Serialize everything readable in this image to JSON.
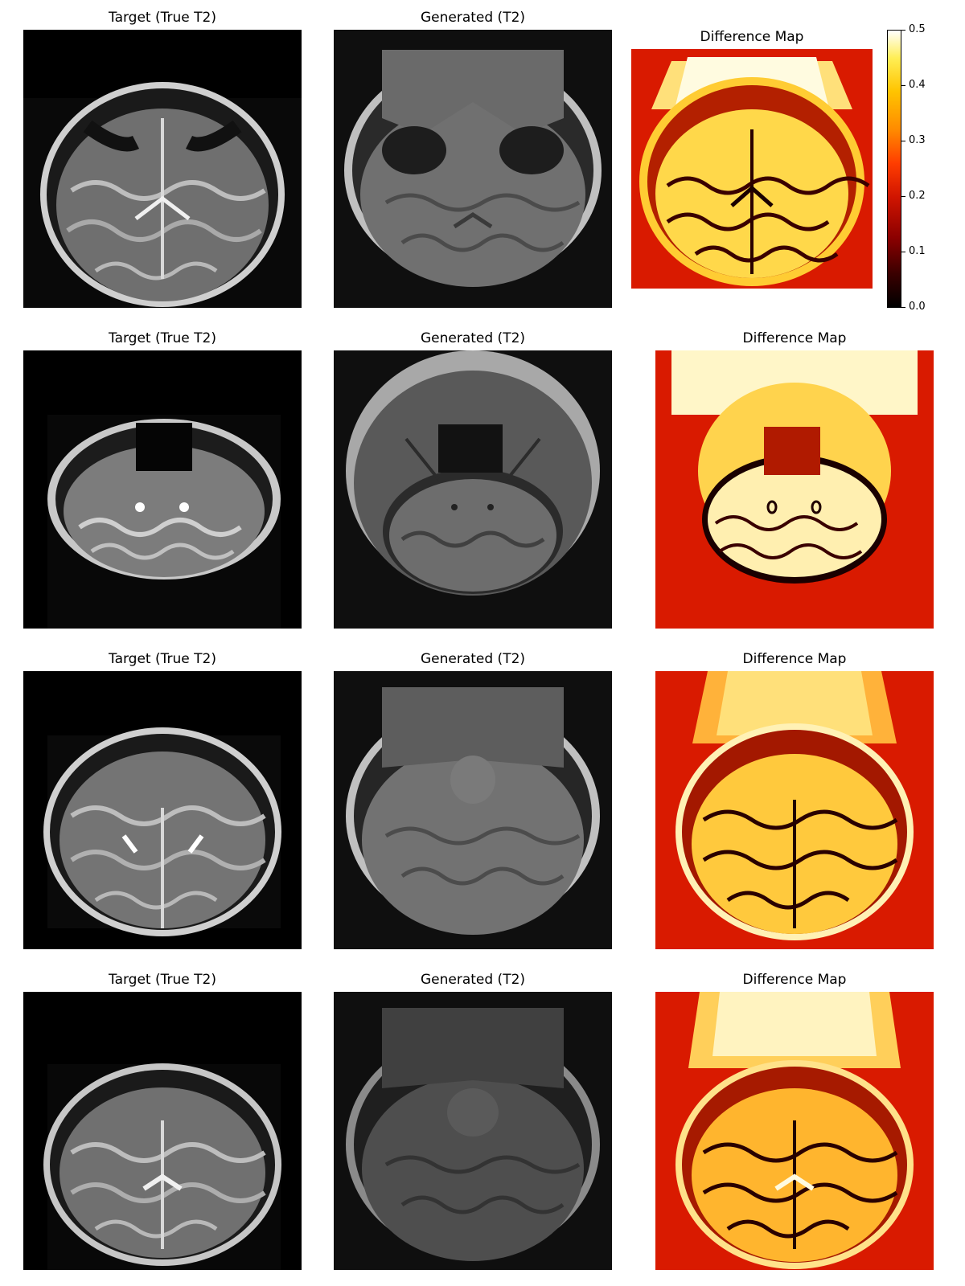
{
  "rows": [
    {
      "target_title": "Target (True T2)",
      "generated_title": "Generated (T2)",
      "diff_title": "Difference Map"
    },
    {
      "target_title": "Target (True T2)",
      "generated_title": "Generated (T2)",
      "diff_title": "Difference Map"
    },
    {
      "target_title": "Target (True T2)",
      "generated_title": "Generated (T2)",
      "diff_title": "Difference Map"
    },
    {
      "target_title": "Target (True T2)",
      "generated_title": "Generated (T2)",
      "diff_title": "Difference Map"
    }
  ],
  "colorbar": {
    "ticks": [
      "0.0",
      "0.1",
      "0.2",
      "0.3",
      "0.4",
      "0.5"
    ],
    "colormap": "hot"
  }
}
